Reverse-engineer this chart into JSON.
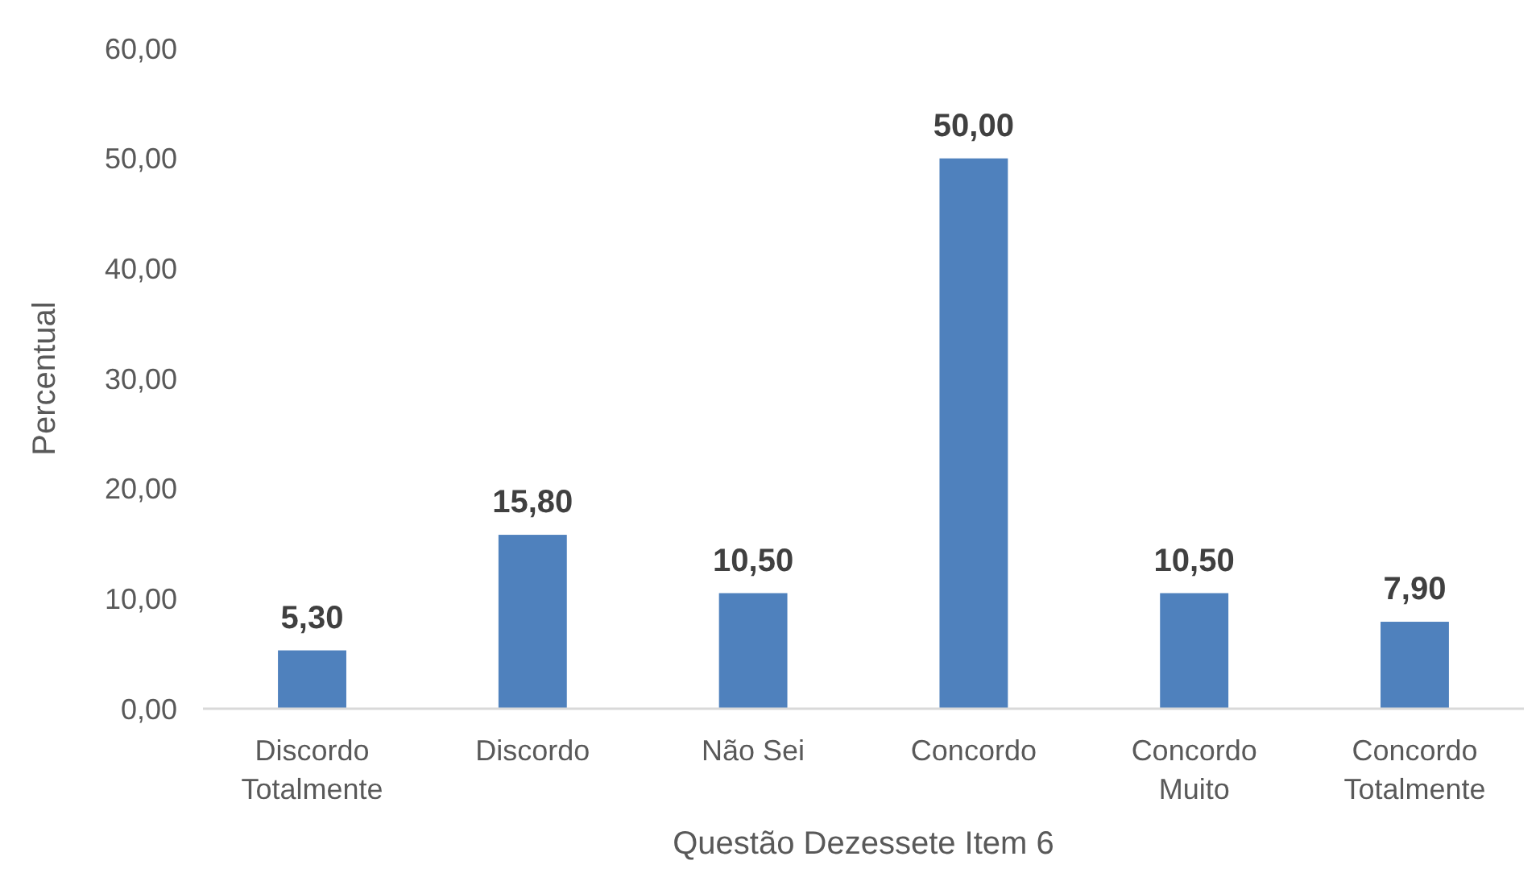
{
  "chart_data": {
    "type": "bar",
    "xlabel": "Questão Dezessete Item 6",
    "ylabel": "Percentual",
    "categories": [
      "Discordo Totalmente",
      "Discordo",
      "Não Sei",
      "Concordo",
      "Concordo Muito",
      "Concordo Totalmente"
    ],
    "values": [
      5.3,
      15.8,
      10.5,
      50,
      10.5,
      7.9
    ],
    "value_labels": [
      "5,30",
      "15,80",
      "10,50",
      "50,00",
      "10,50",
      "7,90"
    ],
    "color": "#4f81bd",
    "ylim": [
      0,
      60
    ],
    "yticks": [
      {
        "value": 0,
        "label": "0,00"
      },
      {
        "value": 10,
        "label": "10,00"
      },
      {
        "value": 20,
        "label": "20,00"
      },
      {
        "value": 30,
        "label": "30,00"
      },
      {
        "value": 40,
        "label": "40,00"
      },
      {
        "value": 50,
        "label": "50,00"
      },
      {
        "value": 60,
        "label": "60,00"
      }
    ],
    "grid": false
  }
}
